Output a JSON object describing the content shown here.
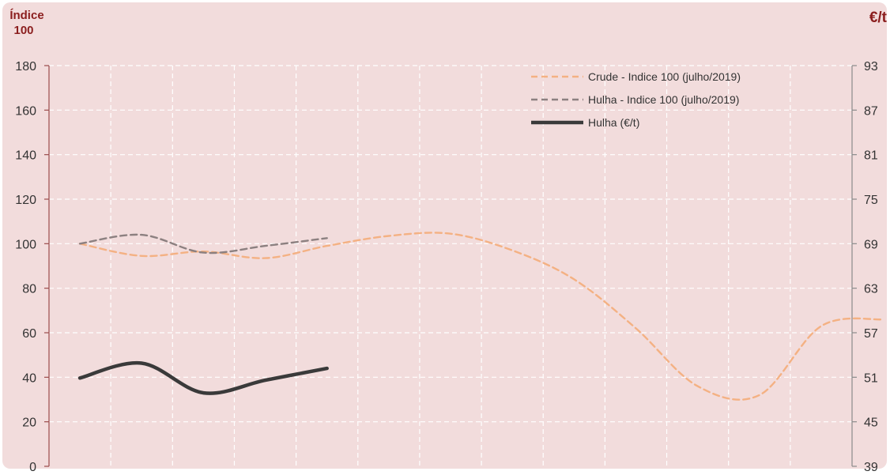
{
  "chart_data": {
    "type": "line",
    "y_left_title": "Índice 100",
    "y_right_title": "€/t",
    "y_left_ticks": [
      "0",
      "20",
      "40",
      "60",
      "80",
      "100",
      "120",
      "140",
      "160",
      "180"
    ],
    "y_right_ticks": [
      "39",
      "45",
      "51",
      "57",
      "63",
      "69",
      "75",
      "81",
      "87",
      "93"
    ],
    "ylim_left": [
      0,
      180
    ],
    "ylim_right": [
      39,
      93
    ],
    "x_positions": 14,
    "grid": true,
    "legend_position": "top-right",
    "colors": {
      "background": "#f2dcdc",
      "grid": "#ffffff",
      "axis": "#9b4b4b",
      "crude": "#f4b183",
      "hulha_index": "#8c8080",
      "hulha_price": "#3a3a3a",
      "title": "#8b1e1e"
    },
    "series": [
      {
        "name": "Crude - Indice 100 (julho/2019)",
        "axis": "left",
        "style": "dashed",
        "color": "#f4b183",
        "values": [
          100,
          94.5,
          96.5,
          93.5,
          99,
          103.5,
          104.5,
          97,
          84,
          62,
          36,
          32,
          63,
          66
        ]
      },
      {
        "name": "Hulha - Indice 100 (julho/2019)",
        "axis": "left",
        "style": "dashed",
        "color": "#8c8080",
        "values": [
          100,
          104,
          96,
          99,
          102.5
        ]
      },
      {
        "name": "Hulha (€/t)",
        "axis": "right",
        "style": "solid",
        "color": "#3a3a3a",
        "values": [
          50.9,
          52.9,
          48.9,
          50.6,
          52.2
        ]
      }
    ]
  }
}
